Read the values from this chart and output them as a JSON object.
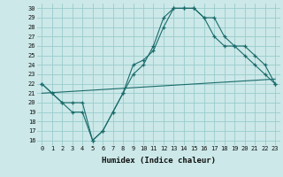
{
  "xlabel": "Humidex (Indice chaleur)",
  "background_color": "#cce8e8",
  "grid_color": "#99cccc",
  "line_color": "#1a6b6b",
  "xlim": [
    -0.5,
    23.5
  ],
  "ylim": [
    15.5,
    30.5
  ],
  "xticks": [
    0,
    1,
    2,
    3,
    4,
    5,
    6,
    7,
    8,
    9,
    10,
    11,
    12,
    13,
    14,
    15,
    16,
    17,
    18,
    19,
    20,
    21,
    22,
    23
  ],
  "yticks": [
    16,
    17,
    18,
    19,
    20,
    21,
    22,
    23,
    24,
    25,
    26,
    27,
    28,
    29,
    30
  ],
  "line1_x": [
    0,
    1,
    2,
    3,
    4,
    5,
    6,
    7,
    8,
    9,
    10,
    11,
    12,
    13,
    14,
    15,
    16,
    17,
    18,
    19,
    20,
    21,
    22,
    23
  ],
  "line1_y": [
    22,
    21,
    20,
    19,
    19,
    16,
    17,
    19,
    21,
    23,
    24,
    26,
    29,
    30,
    30,
    30,
    29,
    29,
    27,
    26,
    25,
    24,
    23,
    22
  ],
  "line2_x": [
    0,
    1,
    2,
    3,
    4,
    5,
    6,
    7,
    8,
    9,
    10,
    11,
    12,
    13,
    14,
    15,
    16,
    17,
    18,
    19,
    20,
    21,
    22,
    23
  ],
  "line2_y": [
    22,
    21,
    20,
    20,
    20,
    16,
    17,
    19,
    21,
    24,
    24.5,
    25.5,
    28,
    30,
    30,
    30,
    29,
    27,
    26,
    26,
    26,
    25,
    24,
    22
  ],
  "line3_x": [
    0,
    23
  ],
  "line3_y": [
    21,
    22.5
  ]
}
